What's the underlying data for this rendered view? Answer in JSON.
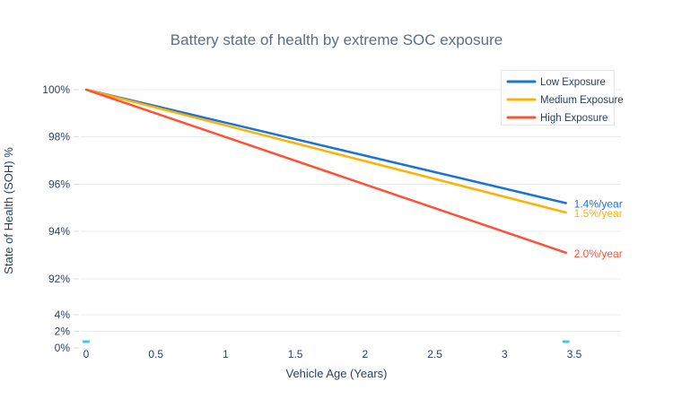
{
  "colors": {
    "background": "#ffffff",
    "title_text": "#5c6e84",
    "tick_text": "#2a3f5f",
    "gridline": "#e9ebee",
    "tick_mark": "#d9dee4",
    "legend_border": "#e6e6e6",
    "legend_background": "#ffffff",
    "low_exposure": "#1a74d2",
    "medium_exposure": "#ffb100",
    "high_exposure": "#ff5136",
    "baseline_marker": "#3cc7e8"
  },
  "chart_data": {
    "type": "line",
    "title": "Battery state of health by extreme SOC exposure",
    "xlabel": "Vehicle Age (Years)",
    "ylabel": "State of Health (SOH) %",
    "grid": true,
    "x_tick_values": [
      0,
      0.5,
      1,
      1.5,
      2,
      2.5,
      3,
      3.5
    ],
    "x_tick_labels": [
      "0",
      "0.5",
      "1",
      "1.5",
      "2",
      "2.5",
      "3",
      "3.5"
    ],
    "x_range": [
      -0.04,
      3.84
    ],
    "y_axis_upper": {
      "tick_labels": [
        "100%",
        "98%",
        "96%",
        "94%",
        "92%"
      ],
      "tick_values": [
        100,
        98,
        96,
        94,
        92
      ],
      "range": [
        91.3,
        100.6
      ]
    },
    "y_axis_lower": {
      "tick_labels": [
        "4%",
        "2%",
        "0%"
      ],
      "tick_values": [
        4,
        2,
        0
      ],
      "range": [
        0,
        4.3
      ]
    },
    "series": [
      {
        "name": "Low Exposure",
        "color_key": "low_exposure",
        "x": [
          0,
          3.44
        ],
        "y": [
          100,
          95.2
        ],
        "degradation_rate_pct_per_year": 1.4,
        "end_label": "1.4%/year"
      },
      {
        "name": "Medium Exposure",
        "color_key": "medium_exposure",
        "x": [
          0,
          3.44
        ],
        "y": [
          100,
          94.8
        ],
        "degradation_rate_pct_per_year": 1.5,
        "end_label": "1.5%/year"
      },
      {
        "name": "High Exposure",
        "color_key": "high_exposure",
        "x": [
          0,
          3.44
        ],
        "y": [
          100,
          93.1
        ],
        "degradation_rate_pct_per_year": 2.0,
        "end_label": "2.0%/year"
      }
    ],
    "baseline_markers": {
      "color_key": "baseline_marker",
      "x": [
        0,
        3.44
      ],
      "y": [
        0,
        0
      ]
    },
    "legend": {
      "position": "top-right",
      "entries": [
        "Low Exposure",
        "Medium Exposure",
        "High Exposure"
      ]
    }
  }
}
